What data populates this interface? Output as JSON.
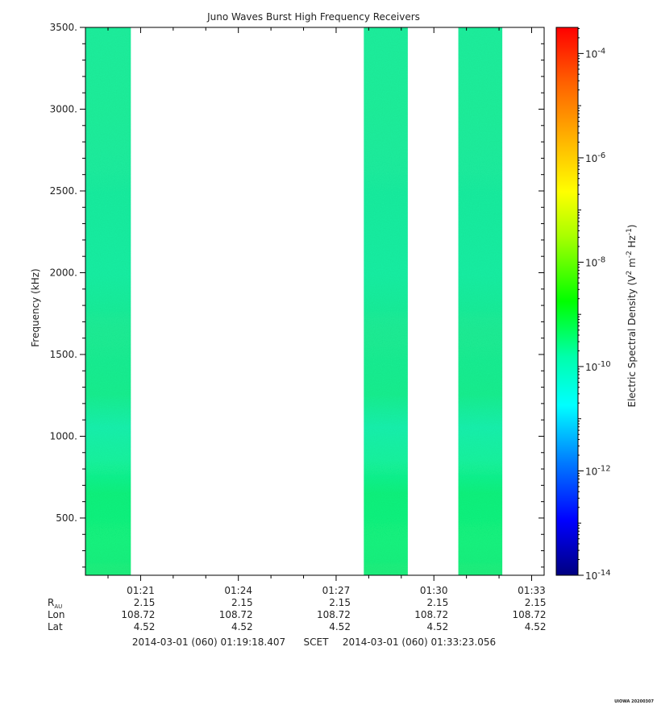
{
  "chart_data": {
    "type": "heatmap",
    "title": "Juno Waves Burst High Frequency Receivers",
    "ylabel": "Frequency (kHz)",
    "ylim": [
      150,
      3500
    ],
    "yticks": [
      500,
      1000,
      1500,
      2000,
      2500,
      3000,
      3500
    ],
    "ytick_labels": [
      "500.",
      "1000.",
      "1500.",
      "2000.",
      "2500.",
      "3000.",
      "3500."
    ],
    "x_start_min": 79.307,
    "x_end_min": 93.384,
    "xticks_min": [
      81,
      84,
      87,
      90,
      93
    ],
    "xtick_labels": [
      "01:21",
      "01:24",
      "01:27",
      "01:30",
      "01:33"
    ],
    "data_blocks": [
      {
        "start_min": 79.307,
        "end_min": 80.7
      },
      {
        "start_min": 87.85,
        "end_min": 89.2
      },
      {
        "start_min": 90.75,
        "end_min": 92.1
      }
    ],
    "colorbar": {
      "label_base": "Electric Spectral Density (V",
      "label_sup1": "2",
      "label_mid": " m",
      "label_sup2": "-2",
      "label_mid2": " Hz",
      "label_sup3": "-1",
      "label_end": ")",
      "log_min": -14,
      "log_max": -3.5,
      "tick_exponents": [
        -14,
        -12,
        -10,
        -8,
        -6,
        -4
      ],
      "tick_base": "10",
      "tick_exp_labels": [
        "-14",
        "-12",
        "-10",
        "-8",
        "-6",
        "-4"
      ]
    },
    "ephemeris": {
      "rows": [
        {
          "label": "R",
          "label_sub": "AU",
          "values": [
            "2.15",
            "2.15",
            "2.15",
            "2.15",
            "2.15"
          ]
        },
        {
          "label": "Lon",
          "label_sub": "",
          "values": [
            "108.72",
            "108.72",
            "108.72",
            "108.72",
            "108.72"
          ]
        },
        {
          "label": "Lat",
          "label_sub": "",
          "values": [
            "4.52",
            "4.52",
            "4.52",
            "4.52",
            "4.52"
          ]
        }
      ]
    },
    "time_range": {
      "start": "2014-03-01 (060) 01:19:18.407",
      "middle": "SCET",
      "end": "2014-03-01 (060) 01:33:23.056"
    },
    "footer": "UIOWA 20200307"
  }
}
